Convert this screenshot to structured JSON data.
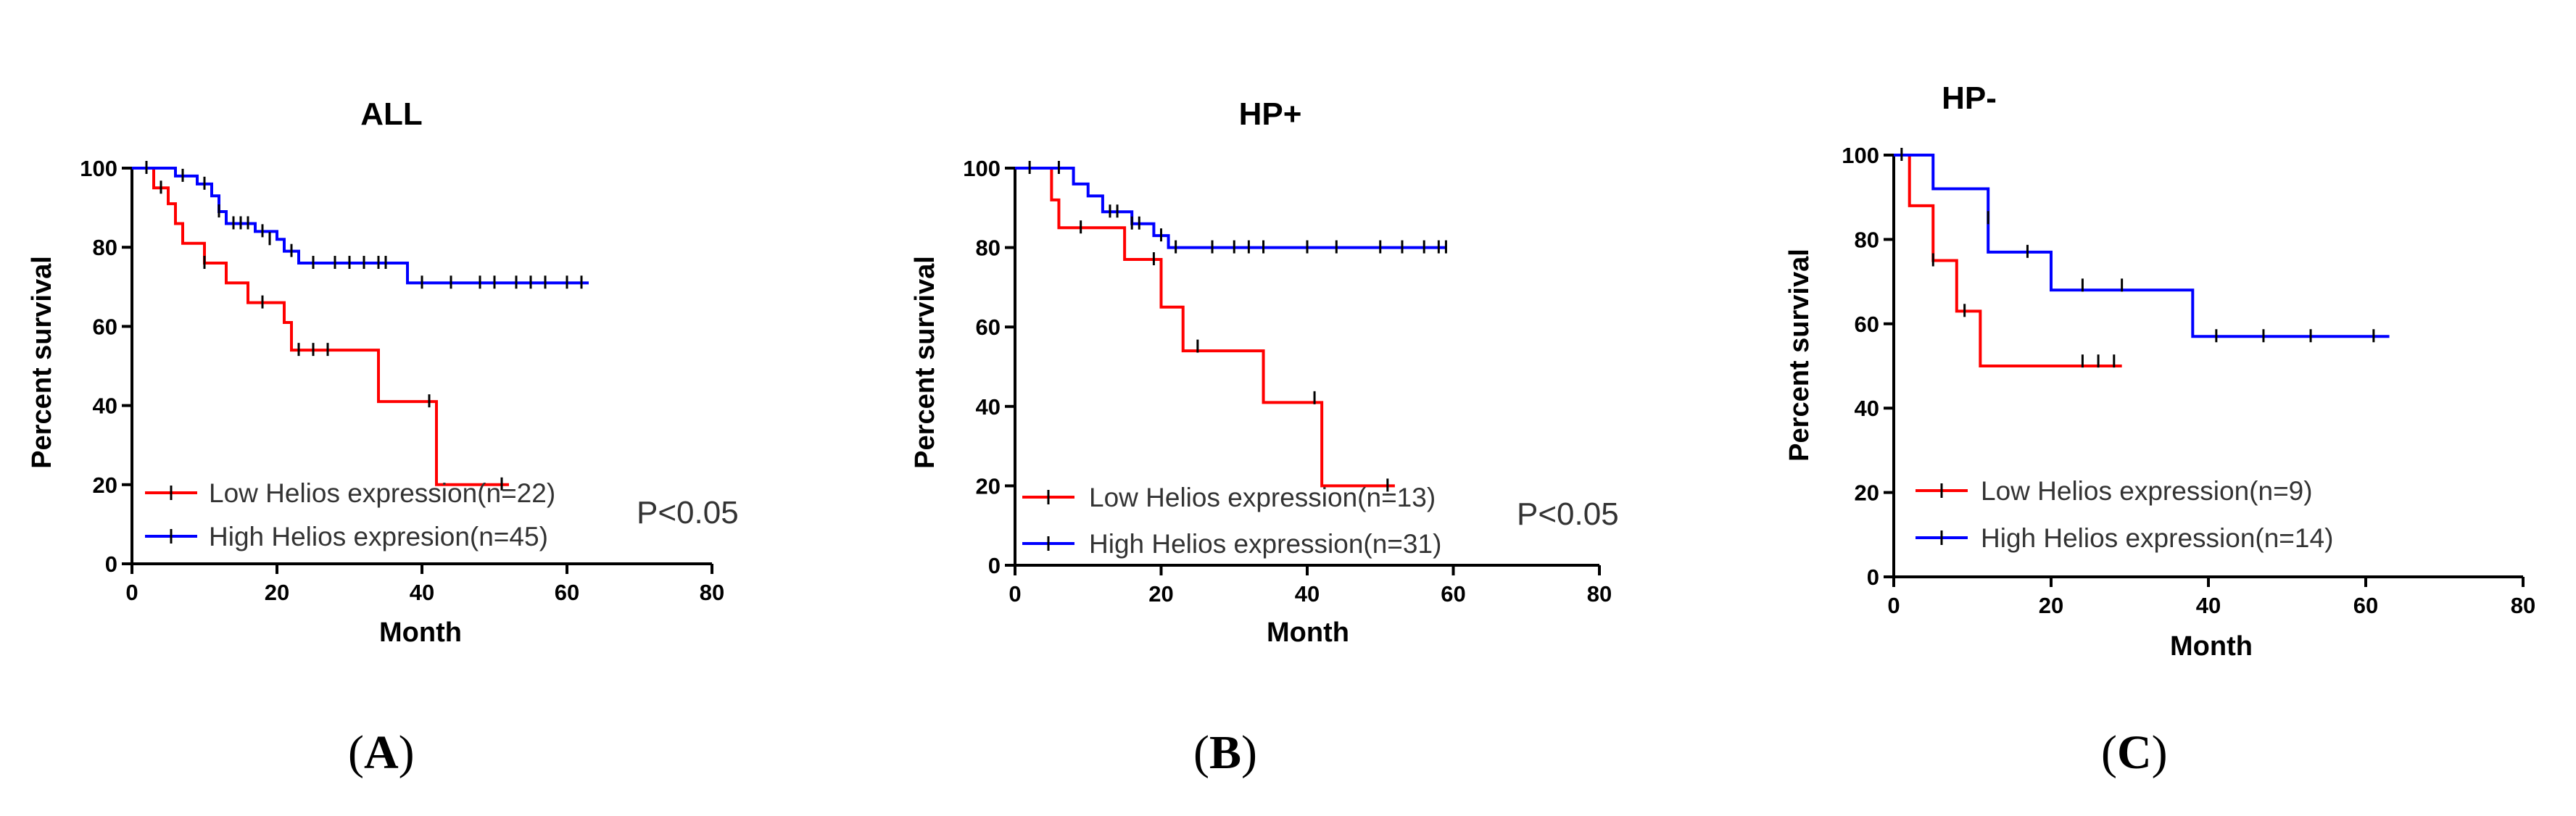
{
  "colors": {
    "low": "#ff0000",
    "high": "#0000ff",
    "axis": "#000000"
  },
  "chart_data": [
    {
      "type": "line",
      "subtype": "kaplan-meier",
      "title": "ALL",
      "panel_label": "A",
      "xlabel": "Month",
      "ylabel": "Percent survival",
      "xlim": [
        0,
        80
      ],
      "ylim": [
        0,
        100
      ],
      "xticks": [
        0,
        20,
        40,
        60,
        80
      ],
      "yticks": [
        0,
        20,
        40,
        60,
        80,
        100
      ],
      "p_value": "P<0.05",
      "series": [
        {
          "name": "Low Helios expression(n=22)",
          "color": "#ff0000",
          "steps": [
            [
              0,
              100
            ],
            [
              3,
              95
            ],
            [
              5,
              91
            ],
            [
              6,
              86
            ],
            [
              7,
              81
            ],
            [
              10,
              76
            ],
            [
              13,
              71
            ],
            [
              16,
              66
            ],
            [
              21,
              61
            ],
            [
              22,
              54
            ],
            [
              34,
              54
            ],
            [
              34,
              41
            ],
            [
              42,
              41
            ],
            [
              42,
              20
            ],
            [
              52,
              20
            ]
          ],
          "censor": [
            [
              4,
              95
            ],
            [
              10,
              76
            ],
            [
              18,
              66
            ],
            [
              23,
              54
            ],
            [
              25,
              54
            ],
            [
              27,
              54
            ],
            [
              41,
              41
            ],
            [
              51,
              20
            ]
          ]
        },
        {
          "name": "High Helios expresion(n=45)",
          "color": "#0000ff",
          "steps": [
            [
              0,
              100
            ],
            [
              6,
              98
            ],
            [
              9,
              96
            ],
            [
              11,
              93
            ],
            [
              12,
              89
            ],
            [
              13,
              86
            ],
            [
              17,
              84
            ],
            [
              20,
              82
            ],
            [
              21,
              79
            ],
            [
              23,
              76
            ],
            [
              38,
              76
            ],
            [
              38,
              71
            ],
            [
              63,
              71
            ]
          ],
          "censor": [
            [
              2,
              100
            ],
            [
              7,
              98
            ],
            [
              10,
              96
            ],
            [
              12,
              89
            ],
            [
              14,
              86
            ],
            [
              15,
              86
            ],
            [
              16,
              86
            ],
            [
              18,
              84
            ],
            [
              19,
              82
            ],
            [
              22,
              79
            ],
            [
              25,
              76
            ],
            [
              28,
              76
            ],
            [
              30,
              76
            ],
            [
              32,
              76
            ],
            [
              34,
              76
            ],
            [
              35,
              76
            ],
            [
              40,
              71
            ],
            [
              44,
              71
            ],
            [
              48,
              71
            ],
            [
              50,
              71
            ],
            [
              53,
              71
            ],
            [
              55,
              71
            ],
            [
              57,
              71
            ],
            [
              60,
              71
            ],
            [
              62,
              71
            ]
          ]
        }
      ]
    },
    {
      "type": "line",
      "subtype": "kaplan-meier",
      "title": "HP+",
      "panel_label": "B",
      "xlabel": "Month",
      "ylabel": "Percent survival",
      "xlim": [
        0,
        80
      ],
      "ylim": [
        0,
        100
      ],
      "xticks": [
        0,
        20,
        40,
        60,
        80
      ],
      "yticks": [
        0,
        20,
        40,
        60,
        80,
        100
      ],
      "p_value": "P<0.05",
      "series": [
        {
          "name": "Low Helios expression(n=13)",
          "color": "#ff0000",
          "steps": [
            [
              0,
              100
            ],
            [
              5,
              92
            ],
            [
              6,
              85
            ],
            [
              15,
              85
            ],
            [
              15,
              77
            ],
            [
              20,
              77
            ],
            [
              20,
              65
            ],
            [
              23,
              65
            ],
            [
              23,
              54
            ],
            [
              34,
              54
            ],
            [
              34,
              41
            ],
            [
              42,
              41
            ],
            [
              42,
              20
            ],
            [
              52,
              20
            ]
          ],
          "censor": [
            [
              9,
              85
            ],
            [
              19,
              77
            ],
            [
              25,
              55
            ],
            [
              41,
              42
            ],
            [
              51,
              20
            ]
          ]
        },
        {
          "name": "High Helios expression(n=31)",
          "color": "#0000ff",
          "steps": [
            [
              0,
              100
            ],
            [
              8,
              96
            ],
            [
              10,
              93
            ],
            [
              12,
              89
            ],
            [
              16,
              86
            ],
            [
              19,
              83
            ],
            [
              21,
              80
            ],
            [
              59,
              80
            ]
          ],
          "censor": [
            [
              2,
              100
            ],
            [
              6,
              100
            ],
            [
              13,
              89
            ],
            [
              14,
              89
            ],
            [
              16,
              86
            ],
            [
              17,
              86
            ],
            [
              20,
              83
            ],
            [
              22,
              80
            ],
            [
              27,
              80
            ],
            [
              30,
              80
            ],
            [
              32,
              80
            ],
            [
              34,
              80
            ],
            [
              40,
              80
            ],
            [
              44,
              80
            ],
            [
              50,
              80
            ],
            [
              53,
              80
            ],
            [
              56,
              80
            ],
            [
              58,
              80
            ],
            [
              59,
              80
            ]
          ]
        }
      ]
    },
    {
      "type": "line",
      "subtype": "kaplan-meier",
      "title": "HP-",
      "panel_label": "C",
      "xlabel": "Month",
      "ylabel": "Percent survival",
      "xlim": [
        0,
        80
      ],
      "ylim": [
        0,
        100
      ],
      "xticks": [
        0,
        20,
        40,
        60,
        80
      ],
      "yticks": [
        0,
        20,
        40,
        60,
        80,
        100
      ],
      "p_value": "",
      "series": [
        {
          "name": "Low Helios expression(n=9)",
          "color": "#ff0000",
          "steps": [
            [
              0,
              100
            ],
            [
              2,
              100
            ],
            [
              2,
              88
            ],
            [
              5,
              88
            ],
            [
              5,
              75
            ],
            [
              8,
              75
            ],
            [
              8,
              63
            ],
            [
              11,
              63
            ],
            [
              11,
              50
            ],
            [
              29,
              50
            ]
          ],
          "censor": [
            [
              5,
              75
            ],
            [
              9,
              63
            ],
            [
              24,
              51
            ],
            [
              26,
              51
            ],
            [
              28,
              51
            ]
          ]
        },
        {
          "name": "High Helios expression(n=14)",
          "color": "#0000ff",
          "steps": [
            [
              0,
              100
            ],
            [
              5,
              100
            ],
            [
              5,
              92
            ],
            [
              12,
              92
            ],
            [
              12,
              77
            ],
            [
              20,
              77
            ],
            [
              20,
              68
            ],
            [
              38,
              68
            ],
            [
              38,
              57
            ],
            [
              63,
              57
            ]
          ],
          "censor": [
            [
              1,
              100
            ],
            [
              12,
              85
            ],
            [
              17,
              77
            ],
            [
              24,
              69
            ],
            [
              29,
              69
            ],
            [
              41,
              57
            ],
            [
              47,
              57
            ],
            [
              53,
              57
            ],
            [
              61,
              57
            ]
          ]
        }
      ]
    }
  ]
}
